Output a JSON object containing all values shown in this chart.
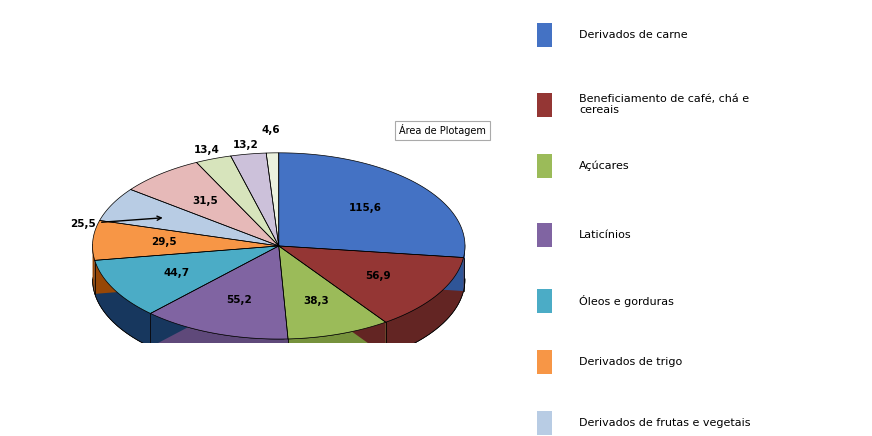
{
  "values": [
    115.6,
    56.9,
    38.3,
    55.2,
    44.7,
    29.5,
    25.5,
    31.5,
    13.4,
    13.2,
    4.6
  ],
  "value_labels": [
    "115,6",
    "56,9",
    "38,3",
    "55,2",
    "44,7",
    "29,5",
    "25,5",
    "31,5",
    "13,4",
    "13,2",
    "4,6"
  ],
  "colors": [
    "#4472C4",
    "#943634",
    "#9BBB59",
    "#8064A2",
    "#4BACC6",
    "#F79646",
    "#B8CCE4",
    "#E6B9B8",
    "#D7E4BC",
    "#CCC1DA",
    "#EBF1DE"
  ],
  "side_colors": [
    "#2F5597",
    "#632523",
    "#76923C",
    "#5F497A",
    "#17375E",
    "#974706",
    "#8096BE",
    "#C0504D",
    "#A8C08A",
    "#9999CC",
    "#C4D79B"
  ],
  "legend_labels": [
    "Derivados de carne",
    "Beneficiamento de café, chá e\ncereais",
    "Açúcares",
    "Laticínios",
    "Óleos e gorduras",
    "Derivados de trigo",
    "Derivados de frutas e vegetais"
  ],
  "background_color": "#FFFFFF",
  "startangle": 90,
  "plot_area_label": "Área de Plotagem"
}
